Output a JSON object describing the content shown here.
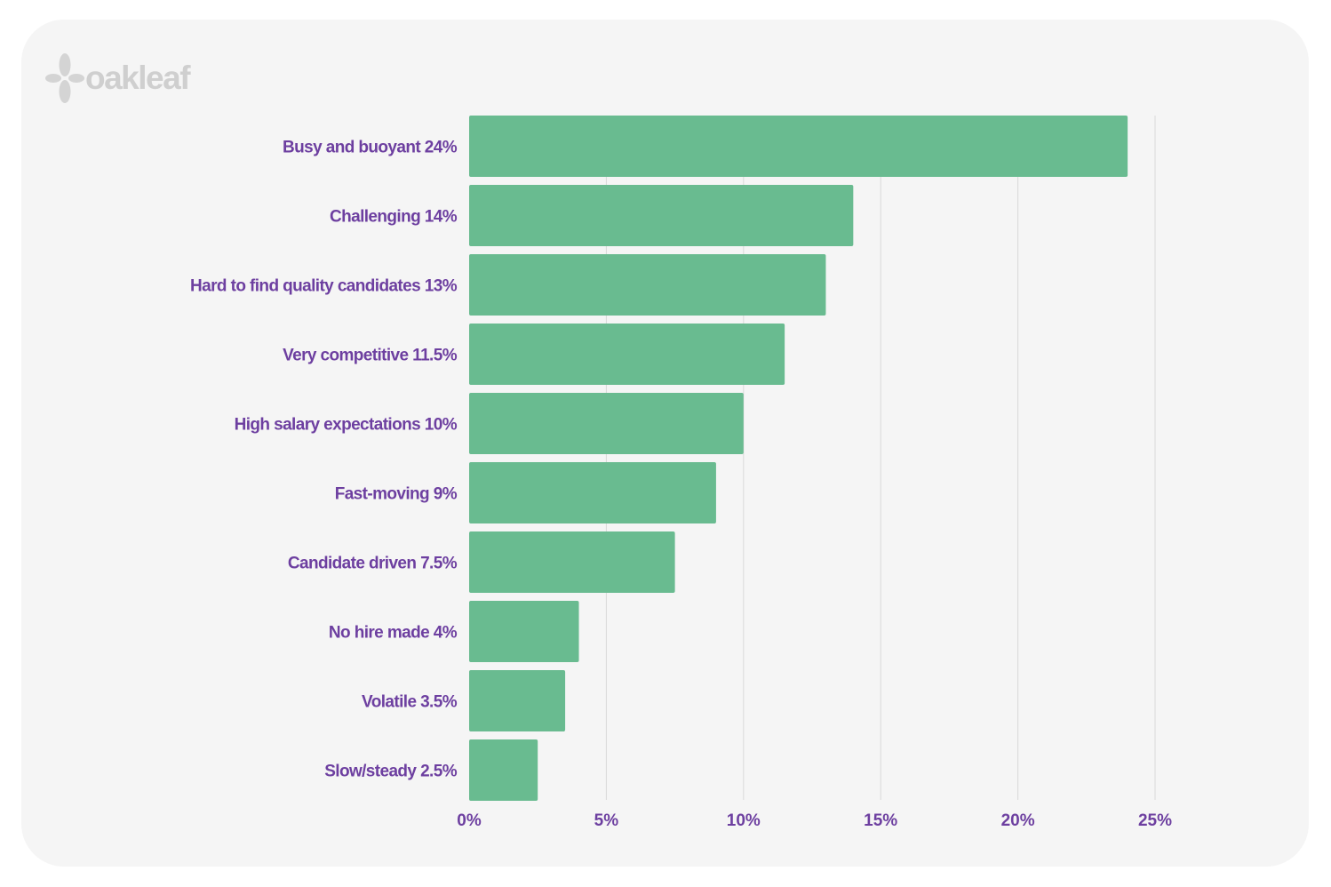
{
  "logo": {
    "text": "oakleaf",
    "color": "#cfcfcf"
  },
  "colors": {
    "bar": "#69bb90",
    "label": "#6d3fa0",
    "grid": "#d9d9d9",
    "background": "#f5f5f5"
  },
  "chart_data": {
    "type": "bar",
    "orientation": "horizontal",
    "categories": [
      "Busy and buoyant 24%",
      "Challenging 14%",
      "Hard to find quality candidates 13%",
      "Very competitive 11.5%",
      "High salary expectations 10%",
      "Fast-moving 9%",
      "Candidate driven 7.5%",
      "No hire made 4%",
      "Volatile 3.5%",
      "Slow/steady 2.5%"
    ],
    "values": [
      24,
      14,
      13,
      11.5,
      10,
      9,
      7.5,
      4,
      3.5,
      2.5
    ],
    "xlim": [
      0,
      25
    ],
    "xticks": [
      0,
      5,
      10,
      15,
      20,
      25
    ],
    "xtick_labels": [
      "0%",
      "5%",
      "10%",
      "15%",
      "20%",
      "25%"
    ],
    "grid": true,
    "legend": "none"
  }
}
